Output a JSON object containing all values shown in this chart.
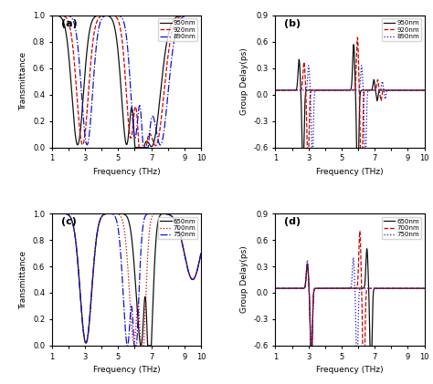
{
  "panel_a": {
    "ylabel": "Transmittance",
    "xlabel": "Frequency (THz)",
    "ylim": [
      0.0,
      1.0
    ],
    "yticks": [
      0.0,
      0.2,
      0.4,
      0.6,
      0.8,
      1.0
    ],
    "legend": [
      "950nm",
      "920nm",
      "890nm"
    ],
    "colors": [
      "#111111",
      "#cc0000",
      "#1111cc"
    ],
    "linestyles": [
      "-",
      "--",
      "-."
    ]
  },
  "panel_b": {
    "ylabel": "Group Delay(ps)",
    "xlabel": "Frequency (THz)",
    "ylim": [
      -0.6,
      0.9
    ],
    "yticks": [
      -0.6,
      -0.3,
      0.0,
      0.3,
      0.6,
      0.9
    ],
    "legend": [
      "950nm",
      "920nm",
      "890nm"
    ],
    "colors": [
      "#111111",
      "#cc0000",
      "#1111cc"
    ],
    "linestyles": [
      "-",
      "--",
      ":"
    ]
  },
  "panel_c": {
    "ylabel": "Transmittance",
    "xlabel": "Frequency (THz)",
    "ylim": [
      0.0,
      1.0
    ],
    "yticks": [
      0.0,
      0.2,
      0.4,
      0.6,
      0.8,
      1.0
    ],
    "legend": [
      "650nm",
      "700nm",
      "750nm"
    ],
    "colors": [
      "#111111",
      "#cc0000",
      "#1111cc"
    ],
    "linestyles": [
      "-",
      ":",
      "-."
    ]
  },
  "panel_d": {
    "ylabel": "Group Delay(ps)",
    "xlabel": "Frequency (THz)",
    "ylim": [
      -0.6,
      0.9
    ],
    "yticks": [
      -0.6,
      -0.3,
      0.0,
      0.3,
      0.6,
      0.9
    ],
    "legend": [
      "650nm",
      "700nm",
      "750nm"
    ],
    "colors": [
      "#111111",
      "#cc0000",
      "#1111cc"
    ],
    "linestyles": [
      "-",
      "--",
      ":"
    ]
  }
}
